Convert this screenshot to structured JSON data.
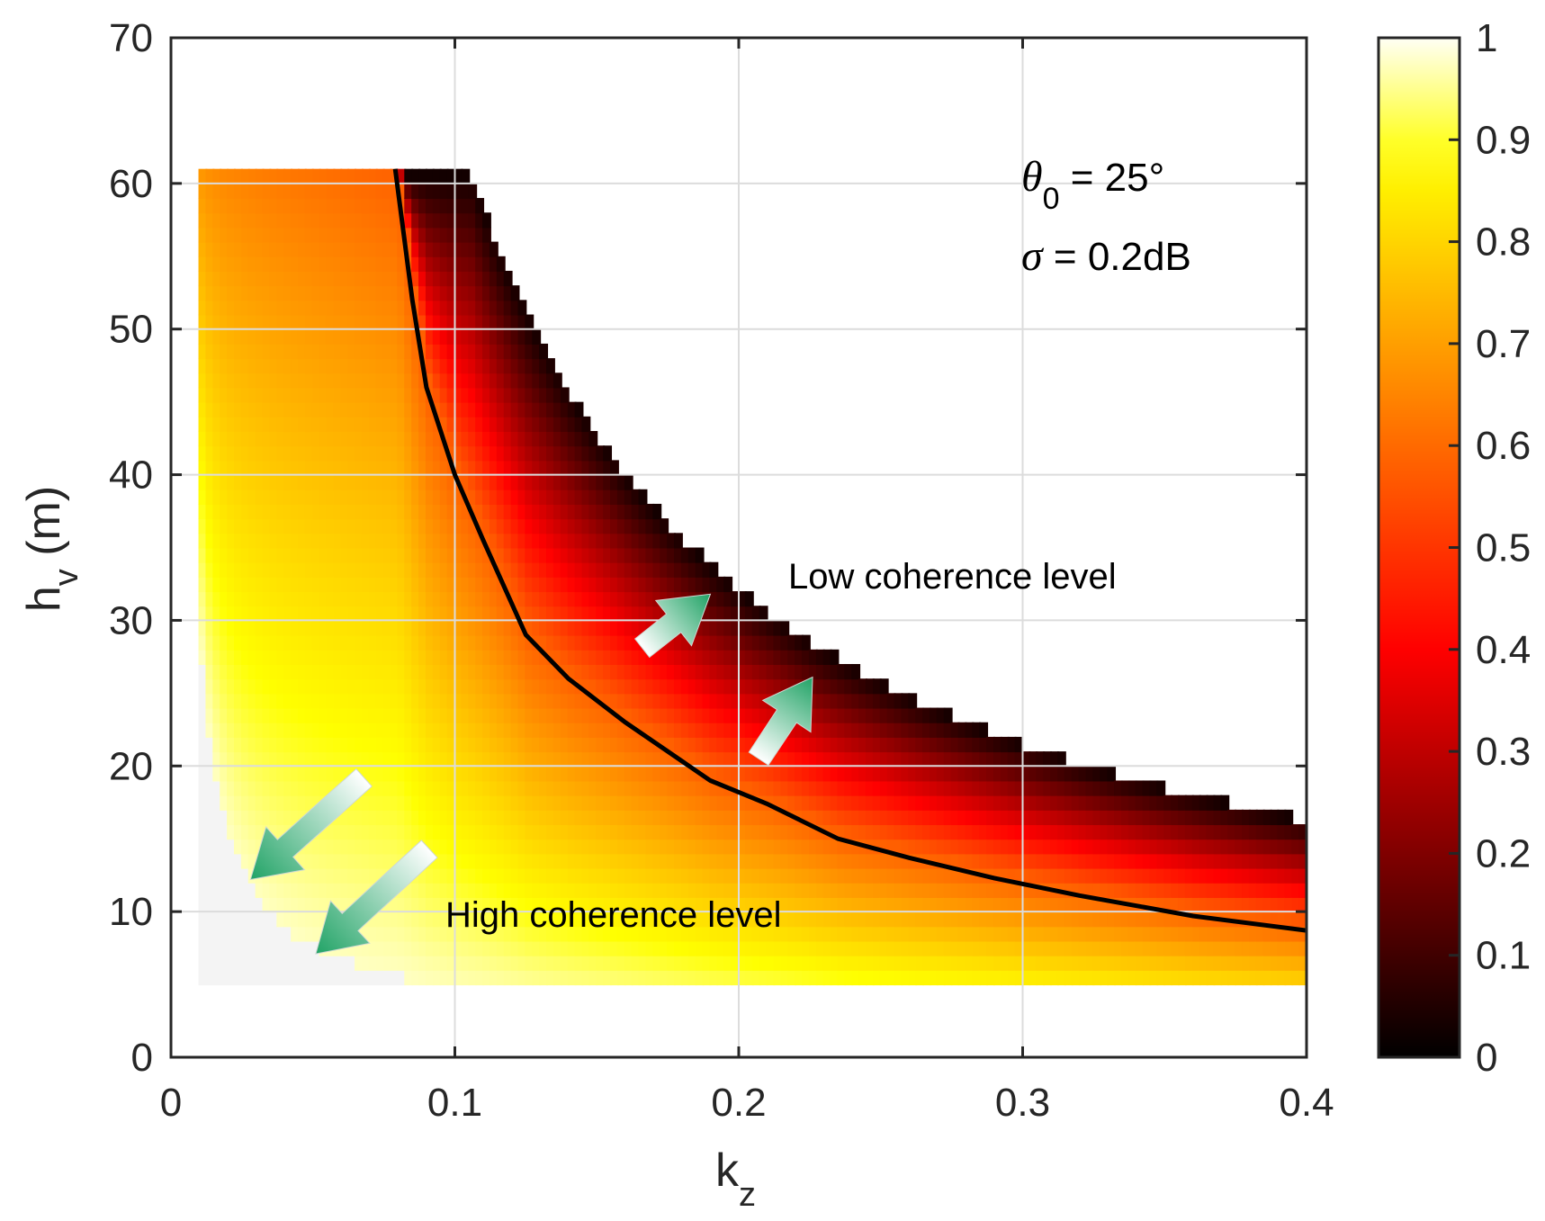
{
  "chart_data": {
    "type": "heatmap",
    "title": "",
    "xlabel": {
      "main": "k",
      "sub": "z"
    },
    "ylabel": {
      "main": "h",
      "sub": "v",
      "suffix": " (m)"
    },
    "xlim": [
      0,
      0.4
    ],
    "ylim": [
      0,
      70
    ],
    "xticks": [
      "0",
      "0.1",
      "0.2",
      "0.3",
      "0.4"
    ],
    "xtick_values": [
      0,
      0.1,
      0.2,
      0.3,
      0.4
    ],
    "yticks": [
      "0",
      "10",
      "20",
      "30",
      "40",
      "50",
      "60",
      "70"
    ],
    "ytick_values": [
      0,
      10,
      20,
      30,
      40,
      50,
      60,
      70
    ],
    "grid": true,
    "colorbar": {
      "range": [
        0,
        1
      ],
      "ticks": [
        "0",
        "0.1",
        "0.2",
        "0.3",
        "0.4",
        "0.5",
        "0.6",
        "0.7",
        "0.8",
        "0.9",
        "1"
      ],
      "tick_values": [
        0,
        0.1,
        0.2,
        0.3,
        0.4,
        0.5,
        0.6,
        0.7,
        0.8,
        0.9,
        1
      ],
      "colormap": "hot"
    },
    "data_region": {
      "kz_range": [
        0.01,
        0.4
      ],
      "hv_range": [
        5,
        60
      ],
      "upper_boundary_product_kz_hv": 6.3
    },
    "threshold_curve": {
      "label": "black contour",
      "kz": [
        0.079,
        0.085,
        0.09,
        0.1,
        0.11,
        0.125,
        0.14,
        0.16,
        0.19,
        0.21,
        0.235,
        0.26,
        0.29,
        0.32,
        0.36,
        0.4
      ],
      "hv": [
        61,
        52,
        46,
        40,
        35.5,
        29,
        26,
        23,
        19,
        17.4,
        15,
        13.7,
        12.3,
        11.1,
        9.7,
        8.7
      ]
    },
    "parameters": {
      "theta": {
        "symbol": "θ",
        "sub": "0",
        "text": " = 25°"
      },
      "sigma": {
        "symbol": "σ",
        "text": " = 0.2dB"
      }
    },
    "annotations": {
      "low": "Low coherence level",
      "high": "High coherence level"
    },
    "arrows": [
      {
        "from": [
          0.166,
          28.1
        ],
        "to": [
          0.19,
          31.8
        ]
      },
      {
        "from": [
          0.207,
          20.5
        ],
        "to": [
          0.226,
          26.1
        ]
      },
      {
        "from": [
          0.068,
          19.2
        ],
        "to": [
          0.028,
          12.2
        ]
      },
      {
        "from": [
          0.091,
          14.3
        ],
        "to": [
          0.051,
          7.1
        ]
      }
    ]
  },
  "colors": {
    "axis": "#262626",
    "grid": "#dcdcdc",
    "curve": "#000000",
    "arrow_start": "#ffffff",
    "arrow_end": "#21a366",
    "background_low": "#f5f5f5"
  }
}
